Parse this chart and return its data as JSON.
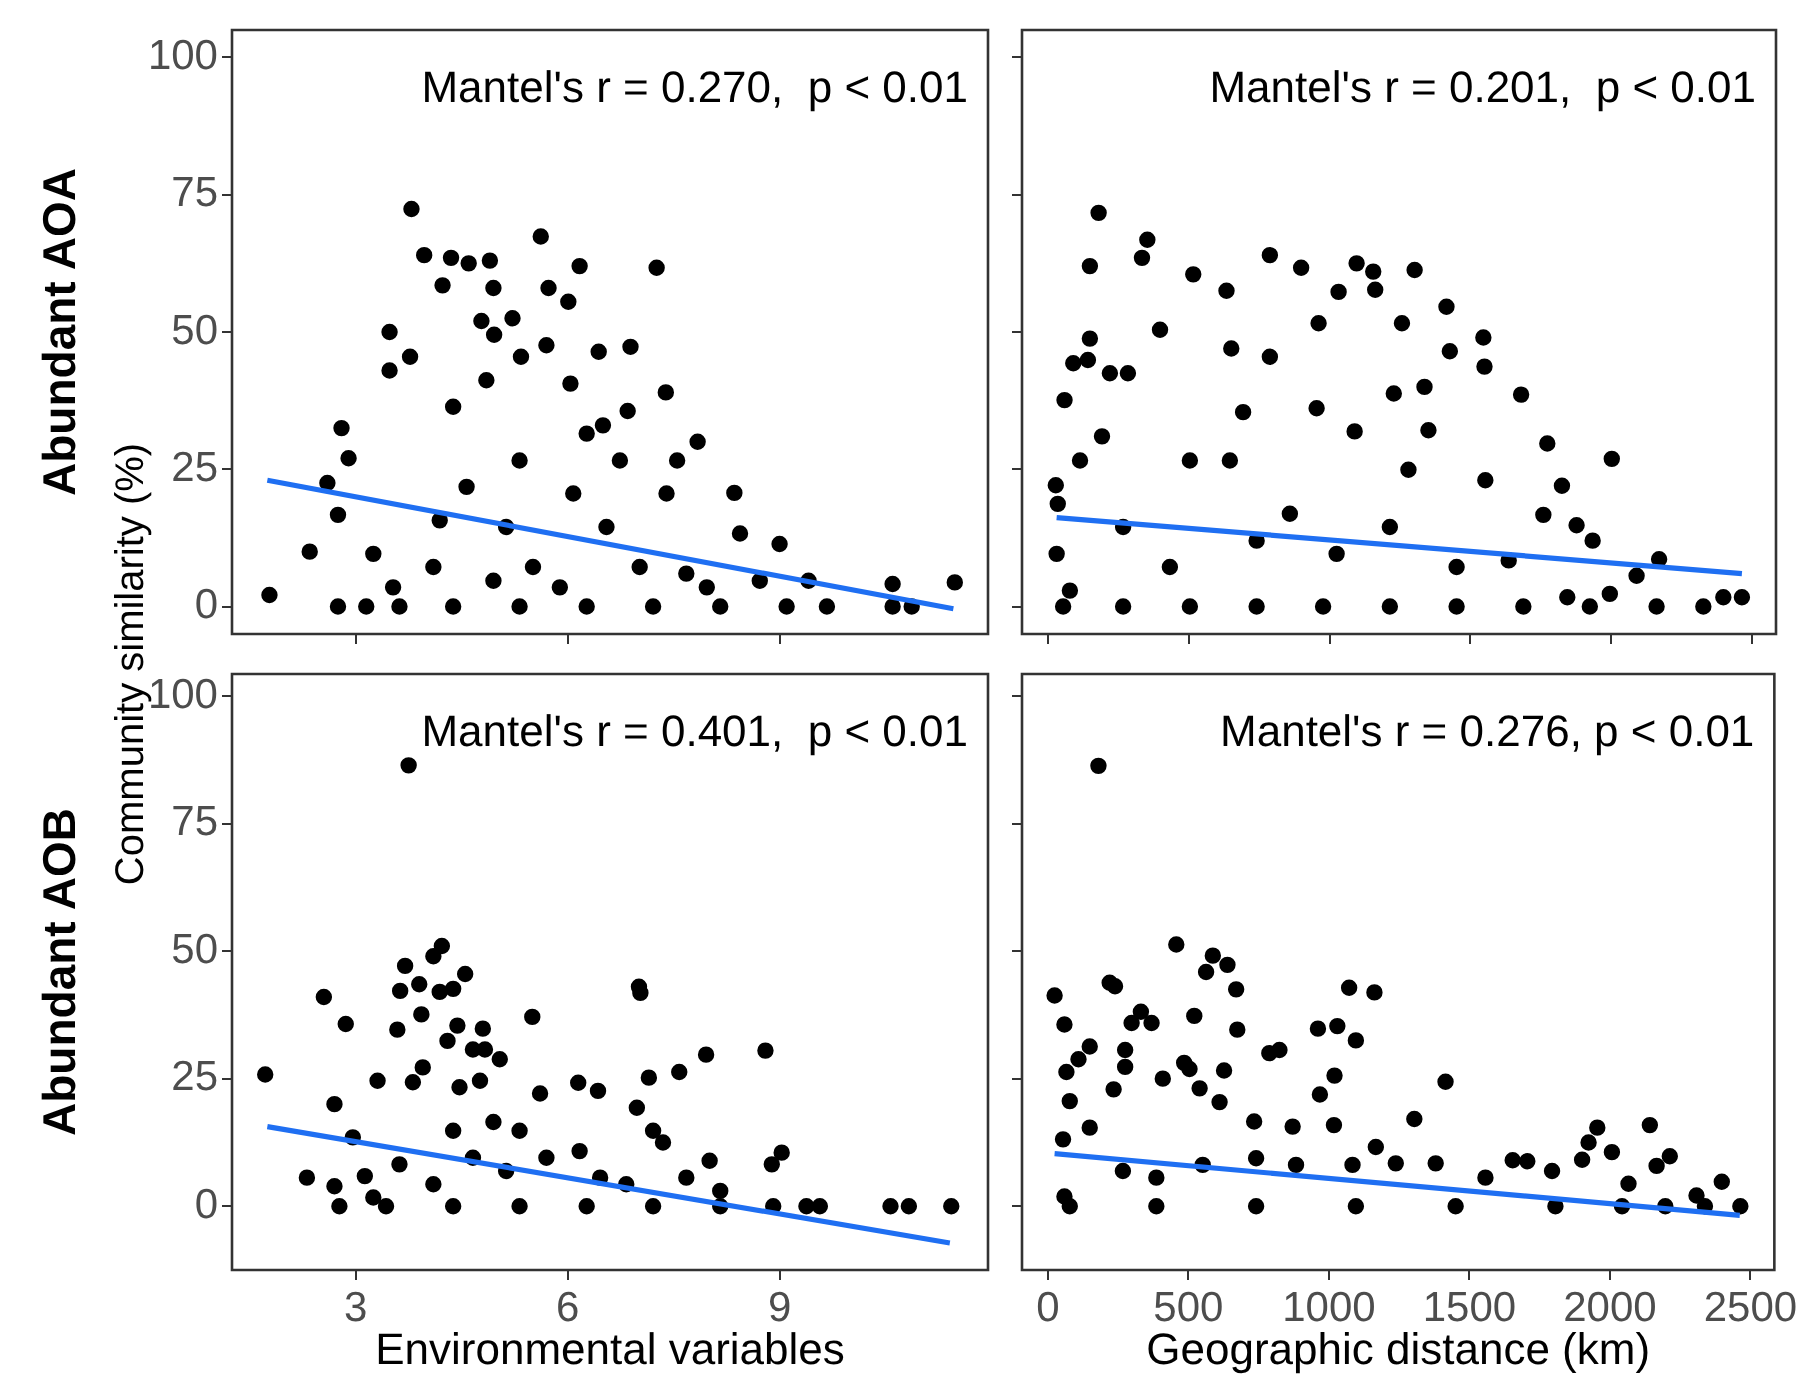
{
  "chart_data": [
    {
      "type": "scatter",
      "ylabel": "Abundant AOA",
      "annotations": [
        "Mantel's r = 0.270,  p < 0.01",
        "Community similarity (%)"
      ],
      "xlim": [
        1.25,
        11.95
      ],
      "ylim": [
        -5,
        105
      ],
      "xticks": [
        3,
        6,
        9
      ],
      "yticks": [
        0,
        25,
        50,
        75,
        100
      ],
      "tick_labels": "y",
      "marker": "circle",
      "grid": false,
      "legend": false,
      "series": [
        {
          "type": "scatter",
          "color": "#000000",
          "x": [
            1.78,
            2.35,
            2.6,
            2.8,
            2.9,
            2.75,
            3.48,
            3.48,
            3.79,
            3.97,
            4.23,
            4.35,
            4.6,
            4.9,
            4.95,
            4.78,
            4.96,
            5.22,
            5.34,
            5.62,
            5.73,
            6.17,
            6.01,
            5.7,
            6.04,
            6.44,
            6.89,
            7.26,
            7.39,
            6.5,
            6.85,
            7.84,
            8.36,
            8.44,
            9.0,
            9.41,
            10.6,
            11.48,
            10.6,
            10.87,
            9.67,
            2.75,
            3.15,
            3.62,
            4.38,
            5.32,
            6.27,
            7.21,
            8.16,
            9.1,
            3.77,
            4.38,
            5.32,
            4.57,
            5.13,
            6.08,
            6.55,
            7.02,
            7.68,
            7.97,
            5.51,
            4.95,
            4.1,
            3.53,
            5.89,
            6.74,
            7.4,
            3.25,
            4.19,
            4.85,
            6.27,
            7.55,
            8.72
          ],
          "values": [
            2.1,
            10,
            22.5,
            32.5,
            27,
            16.7,
            50,
            43,
            72.4,
            64,
            58.5,
            63.5,
            62.5,
            63,
            58,
            52,
            49.5,
            52.5,
            45.5,
            67.4,
            58,
            62,
            55.5,
            47.6,
            40.6,
            46.4,
            47.3,
            61.7,
            39,
            33,
            35.6,
            30,
            20.7,
            13.3,
            11.4,
            4.7,
            4.1,
            4.4,
            0,
            0,
            0,
            0,
            0,
            0,
            0,
            0,
            0,
            0,
            0,
            0,
            45.5,
            36.4,
            26.6,
            21.8,
            14.5,
            20.6,
            14.5,
            7.2,
            6,
            3.5,
            7.2,
            4.7,
            7.2,
            3.5,
            3.5,
            26.6,
            20.6,
            9.6,
            15.7,
            41.2,
            31.5,
            26.6,
            4.7
          ]
        },
        {
          "type": "line",
          "marker": "none",
          "color": "#1f6ff2",
          "x": [
            1.75,
            11.46
          ],
          "values": [
            23,
            -0.4
          ]
        }
      ]
    },
    {
      "type": "scatter",
      "annotations": [
        "Mantel's r = 0.201,  p < 0.01"
      ],
      "xlim": [
        -92,
        2585
      ],
      "ylim": [
        -5,
        105
      ],
      "xticks": [
        0,
        500,
        1000,
        1500,
        2000,
        2500
      ],
      "yticks": [
        0,
        25,
        50,
        75,
        100
      ],
      "tick_labels": false,
      "marker": "circle",
      "grid": false,
      "legend": false,
      "series": [
        {
          "type": "scatter",
          "color": "#000000",
          "x": [
            180,
            149,
            353,
            334,
            788,
            516,
            899,
            1096,
            1155,
            1302,
            1162,
            634,
            1415,
            961,
            1257,
            1032,
            1546,
            1550,
            1427,
            398,
            651,
            788,
            90,
            142,
            149,
            284,
            220,
            59,
            1680,
            1337,
            1228,
            1773,
            2002,
            192,
            693,
            954,
            1089,
            1351,
            28,
            35,
            114,
            504,
            646,
            1280,
            1553,
            1825,
            1759,
            1877,
            1934,
            2170,
            2090,
            2398,
            2464,
            31,
            78,
            267,
            433,
            741,
            859,
            1025,
            1214,
            1451,
            1636,
            54,
            267,
            504,
            741,
            977,
            1214,
            1451,
            1688,
            1924,
            2161,
            2327,
            1995,
            1844
          ],
          "values": [
            71.7,
            62,
            66.8,
            63.5,
            64,
            60.5,
            61.7,
            62.5,
            61,
            61.3,
            57.7,
            57.5,
            54.6,
            51.6,
            51.6,
            57.3,
            49,
            43.7,
            46.5,
            50.4,
            47,
            45.5,
            44.3,
            44.9,
            48.8,
            42.5,
            42.5,
            37.6,
            38.6,
            40,
            38.8,
            29.7,
            26.9,
            31,
            35.4,
            36.1,
            31.9,
            32.1,
            22.1,
            18.7,
            26.6,
            26.6,
            26.6,
            24.9,
            23,
            22,
            16.7,
            14.8,
            12,
            8.6,
            5.6,
            1.7,
            1.7,
            9.6,
            2.9,
            14.5,
            7.2,
            12,
            16.9,
            9.6,
            14.5,
            7.2,
            8.4,
            0,
            0,
            0,
            0,
            0,
            0,
            0,
            0,
            0,
            0,
            0,
            2.3,
            1.7
          ]
        },
        {
          "type": "line",
          "marker": "none",
          "color": "#1f6ff2",
          "x": [
            31,
            2464
          ],
          "values": [
            16.2,
            6
          ]
        }
      ]
    },
    {
      "type": "scatter",
      "ylabel": "Abundant AOB",
      "xlabel": "Environmental variables",
      "annotations": [
        "Mantel's r = 0.401,  p < 0.01"
      ],
      "xlim": [
        1.25,
        11.95
      ],
      "ylim": [
        -12.5,
        104.3
      ],
      "xticks": [
        3,
        6,
        9
      ],
      "yticks": [
        0,
        25,
        50,
        75,
        100
      ],
      "marker": "circle",
      "grid": false,
      "legend": false,
      "series": [
        {
          "type": "scatter",
          "color": "#000000",
          "x": [
            1.72,
            2.31,
            2.55,
            2.7,
            2.86,
            2.7,
            2.96,
            3.31,
            3.75,
            3.7,
            3.63,
            3.59,
            3.9,
            3.93,
            3.81,
            3.95,
            4.1,
            4.22,
            4.19,
            4.38,
            4.3,
            4.44,
            4.55,
            4.47,
            4.8,
            4.66,
            4.83,
            5.04,
            4.76,
            4.95,
            5.5,
            5.61,
            6.15,
            6.43,
            7.01,
            7.03,
            6.98,
            7.15,
            7.58,
            7.96,
            8.8,
            7.21,
            7.35,
            8.01,
            9.03,
            8.89,
            10.57,
            10.83,
            11.43,
            9.38,
            9.57,
            2.77,
            3.43,
            4.38,
            5.32,
            6.27,
            7.21,
            8.16,
            8.91,
            3.13,
            3.25,
            3.62,
            4.1,
            4.66,
            5.13,
            5.7,
            6.17,
            6.46,
            6.83,
            7.68,
            8.16,
            4.38,
            5.32
          ],
          "values": [
            25.8,
            5.6,
            41,
            20,
            35.7,
            3.9,
            13.5,
            24.6,
            86.4,
            47.1,
            42.2,
            34.6,
            43.5,
            37.6,
            24.3,
            27.2,
            49,
            51,
            42,
            42.6,
            32.4,
            35.4,
            45.5,
            23.3,
            34.8,
            30.7,
            30.7,
            28.8,
            24.6,
            16.5,
            37.1,
            22.1,
            24.2,
            22.6,
            43,
            41.8,
            19.3,
            25.2,
            26.3,
            29.7,
            30.5,
            14.8,
            12.5,
            8.9,
            10.5,
            8.2,
            0,
            0,
            0,
            0,
            0,
            0,
            0,
            0,
            0,
            0,
            0,
            0,
            0,
            5.9,
            1.7,
            8.2,
            4.3,
            9.5,
            6.9,
            9.5,
            10.8,
            5.6,
            4.3,
            5.6,
            3,
            14.8,
            14.8
          ]
        },
        {
          "type": "line",
          "marker": "none",
          "color": "#1f6ff2",
          "x": [
            1.75,
            11.41
          ],
          "values": [
            15.6,
            -7.2
          ]
        }
      ]
    },
    {
      "type": "scatter",
      "xlabel": "Geographic distance (km)",
      "annotations": [
        "Mantel's r = 0.276, p < 0.01"
      ],
      "xlim": [
        -92,
        2585
      ],
      "ylim": [
        -12.5,
        104.3
      ],
      "xticks": [
        0,
        500,
        1000,
        1500,
        2000,
        2500
      ],
      "yticks": [
        0,
        25,
        50,
        75,
        100
      ],
      "tick_labels": "x",
      "marker": "circle",
      "grid": false,
      "legend": false,
      "series": [
        {
          "type": "scatter",
          "color": "#000000",
          "x": [
            180,
            457,
            587,
            563,
            639,
            670,
            24,
            220,
            239,
            1072,
            1162,
            521,
            674,
            369,
            298,
            331,
            59,
            149,
            109,
            66,
            78,
            275,
            275,
            234,
            409,
            485,
            504,
            540,
            627,
            611,
            788,
            824,
            961,
            1030,
            1096,
            1020,
            968,
            1415,
            1304,
            871,
            1018,
            734,
            1167,
            1955,
            1924,
            2007,
            2142,
            2213,
            2166,
            1901,
            2398,
            2308,
            2464,
            2338,
            54,
            149,
            59,
            267,
            386,
            551,
            741,
            883,
            1084,
            1238,
            1380,
            1557,
            1654,
            1706,
            1794,
            2066,
            78,
            386,
            741,
            1096,
            1451,
            1806,
            2043,
            2197
          ],
          "values": [
            86.3,
            51.3,
            49.1,
            45.9,
            47.3,
            42.5,
            41.3,
            43.8,
            43.1,
            42.8,
            41.9,
            37.3,
            34.6,
            35.9,
            35.9,
            38.1,
            35.6,
            31.3,
            28.8,
            26.3,
            20.6,
            30.6,
            27.3,
            22.9,
            25,
            28.1,
            26.9,
            23.1,
            26.6,
            20.4,
            30,
            30.6,
            34.8,
            35.3,
            32.5,
            25.6,
            21.9,
            24.4,
            17.1,
            15.6,
            15.9,
            16.6,
            11.6,
            15.4,
            12.5,
            10.6,
            15.9,
            9.8,
            7.9,
            9.1,
            4.8,
            2.1,
            0,
            0,
            13.1,
            15.4,
            1.9,
            6.9,
            5.6,
            8.1,
            9.4,
            8.1,
            8.1,
            8.4,
            8.4,
            5.6,
            9,
            8.8,
            6.9,
            4.4,
            0,
            0,
            0,
            0,
            0,
            0,
            0,
            0
          ]
        },
        {
          "type": "line",
          "marker": "none",
          "color": "#1f6ff2",
          "x": [
            24,
            2462
          ],
          "values": [
            10.3,
            -1.8
          ]
        }
      ]
    }
  ]
}
